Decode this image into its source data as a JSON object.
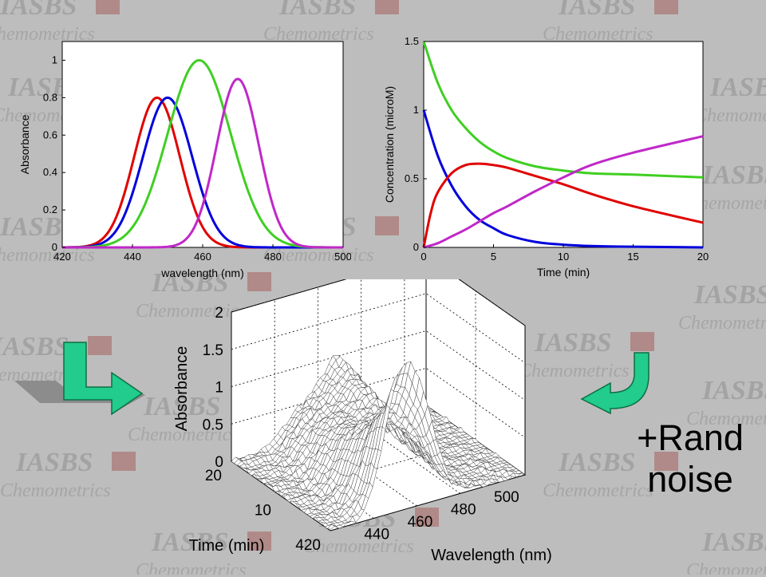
{
  "watermark": {
    "line1": "IASBS",
    "line2": "Chemometrics"
  },
  "side_label": {
    "line1": "+Rand",
    "line2": "noise"
  },
  "colors": {
    "red": "#e00000",
    "blue": "#0000dd",
    "green": "#3fcf22",
    "magenta": "#c028c8",
    "arrow_fill": "#21cc8c",
    "arrow_shadow": "#8a8a8a"
  },
  "chart_data": [
    {
      "type": "line",
      "xlabel": "wavelength (nm)",
      "ylabel": "Absorbance",
      "xlim": [
        420,
        500
      ],
      "ylim": [
        0,
        1.1
      ],
      "xticks": [
        420,
        440,
        460,
        480,
        500
      ],
      "yticks": [
        0,
        0.2,
        0.4,
        0.6,
        0.8,
        1
      ],
      "series": [
        {
          "color": "red",
          "peak_center": 447,
          "peak_height": 0.8,
          "peak_width": 6.5
        },
        {
          "color": "blue",
          "peak_center": 450,
          "peak_height": 0.8,
          "peak_width": 7
        },
        {
          "color": "green",
          "peak_center": 459,
          "peak_height": 1.0,
          "peak_width": 9
        },
        {
          "color": "magenta",
          "peak_center": 470,
          "peak_height": 0.9,
          "peak_width": 6
        }
      ]
    },
    {
      "type": "line",
      "xlabel": "Time (min)",
      "ylabel": "Concentration (microM)",
      "xlim": [
        0,
        20
      ],
      "ylim": [
        0,
        1.5
      ],
      "xticks": [
        0,
        5,
        10,
        15,
        20
      ],
      "yticks": [
        0,
        0.5,
        1,
        1.5
      ],
      "series": [
        {
          "color": "blue",
          "x": [
            0,
            1,
            2,
            3,
            4,
            5,
            6,
            8,
            10,
            12,
            15,
            20
          ],
          "y": [
            1.0,
            0.67,
            0.45,
            0.3,
            0.2,
            0.14,
            0.09,
            0.04,
            0.02,
            0.01,
            0.005,
            0.0
          ]
        },
        {
          "color": "green",
          "x": [
            0,
            1,
            2,
            3,
            4,
            5,
            6,
            8,
            10,
            12,
            15,
            20
          ],
          "y": [
            1.5,
            1.2,
            1.0,
            0.87,
            0.77,
            0.7,
            0.65,
            0.59,
            0.56,
            0.54,
            0.53,
            0.51
          ]
        },
        {
          "color": "red",
          "x": [
            0,
            0.5,
            1,
            2,
            3,
            4,
            5,
            6,
            8,
            10,
            12,
            15,
            20
          ],
          "y": [
            0.0,
            0.25,
            0.4,
            0.54,
            0.6,
            0.61,
            0.6,
            0.58,
            0.52,
            0.46,
            0.39,
            0.3,
            0.18
          ]
        },
        {
          "color": "magenta",
          "x": [
            0,
            1,
            2,
            3,
            4,
            5,
            6,
            8,
            10,
            12,
            15,
            20
          ],
          "y": [
            0.0,
            0.03,
            0.08,
            0.13,
            0.19,
            0.25,
            0.3,
            0.41,
            0.51,
            0.6,
            0.69,
            0.81
          ]
        }
      ]
    },
    {
      "type": "surface",
      "xlabel": "Wavelength (nm)",
      "ylabel": "Time (min)",
      "zlabel": "Absorbance",
      "xlim": [
        420,
        510
      ],
      "ylim": [
        0,
        20
      ],
      "zlim": [
        0,
        2
      ],
      "xticks": [
        440,
        460,
        480,
        500
      ],
      "yticks": [
        20,
        10
      ],
      "y_tick_extra": "420",
      "zticks": [
        0,
        0.5,
        1,
        1.5,
        2
      ],
      "grid": true,
      "noise": true
    }
  ]
}
